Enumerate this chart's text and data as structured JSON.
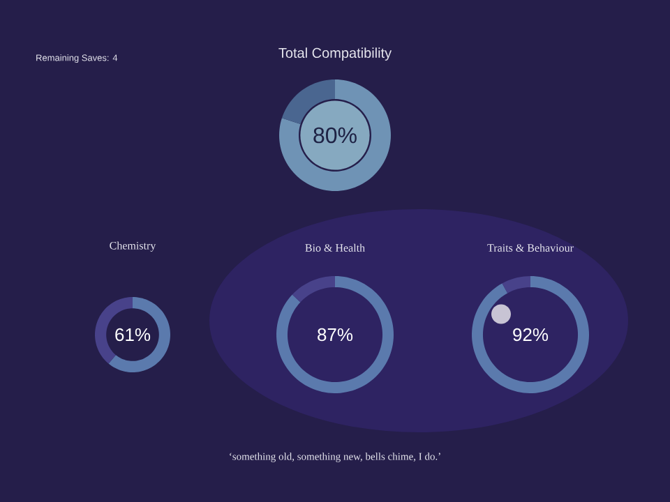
{
  "chart_data": [
    {
      "type": "other",
      "annotations": [
        "Remaining Saves: 4"
      ]
    },
    {
      "type": "donut",
      "title": "Total Compatibility",
      "categories": [
        null,
        null
      ],
      "values": [
        80,
        20
      ],
      "colors": [
        "#6f93b5",
        "#4a6690"
      ],
      "value_labels": [
        "80%",
        null
      ]
    },
    {
      "type": "donut",
      "title": "Chemistry",
      "categories": [
        null,
        null
      ],
      "values": [
        61,
        39
      ],
      "colors": [
        "#5b7aad",
        "#48428a"
      ],
      "value_labels": [
        "61%",
        null
      ]
    },
    {
      "type": "donut",
      "title": "Bio & Health",
      "categories": [
        null,
        null
      ],
      "values": [
        87,
        13
      ],
      "colors": [
        "#5b7aad",
        "#48428a"
      ],
      "value_labels": [
        "87%",
        null
      ]
    },
    {
      "type": "donut",
      "title": "Traits & Behaviour",
      "categories": [
        null,
        null
      ],
      "values": [
        92,
        8
      ],
      "colors": [
        "#5b7aad",
        "#48428a"
      ],
      "value_labels": [
        "92%",
        null
      ]
    },
    {
      "type": "other",
      "annotations": [
        "‘something old, something new, bells chime, I do.’"
      ]
    }
  ]
}
